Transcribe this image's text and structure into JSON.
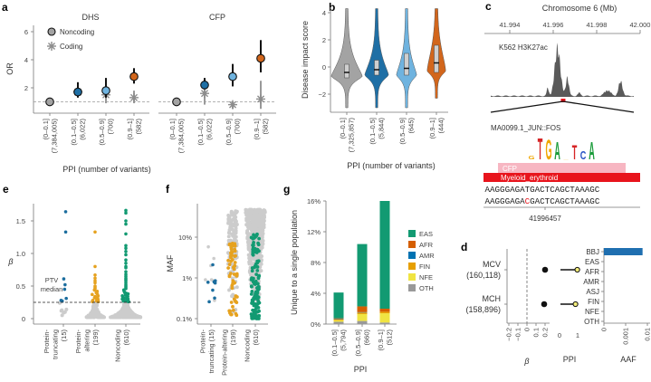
{
  "panel_labels": {
    "a": "a",
    "b": "b",
    "c": "c",
    "d": "d",
    "e": "e",
    "f": "f",
    "g": "g"
  },
  "chart_data": [
    {
      "panel": "a",
      "type": "scatter",
      "facets": [
        "DHS",
        "CFP"
      ],
      "ylabel": "OR",
      "xlabel": "PPI (number of variants)",
      "ylim": [
        0,
        6.5
      ],
      "yticks": [
        "2",
        "4",
        "6"
      ],
      "ytick_values": [
        2,
        4,
        6
      ],
      "reference_line": 1,
      "categories": [
        "(0–0.1]",
        "(0.1–0.5]",
        "(0.5–0.9]",
        "(0.9–1]"
      ],
      "counts": [
        "(7,384,005)",
        "(6,022)",
        "(700)",
        "(582)"
      ],
      "legend": [
        "Noncoding",
        "Coding"
      ],
      "category_colors": [
        "#a3a3a3",
        "#1f6fa5",
        "#6fb3df",
        "#d2661c"
      ],
      "series": [
        {
          "facet": "DHS",
          "name": "Noncoding",
          "values": [
            1.0,
            1.7,
            1.8,
            2.8
          ],
          "ci": [
            [
              0.95,
              1.05
            ],
            [
              1.3,
              2.4
            ],
            [
              1.3,
              2.7
            ],
            [
              2.3,
              3.4
            ]
          ]
        },
        {
          "facet": "DHS",
          "name": "Coding",
          "values": [
            null,
            1.7,
            1.5,
            1.3
          ],
          "ci": [
            null,
            [
              1.4,
              2.2
            ],
            [
              0.9,
              2.7
            ],
            [
              0.9,
              1.8
            ]
          ]
        },
        {
          "facet": "CFP",
          "name": "Noncoding",
          "values": [
            1.0,
            2.2,
            2.8,
            4.1
          ],
          "ci": [
            [
              0.95,
              1.05
            ],
            [
              1.9,
              2.7
            ],
            [
              2.1,
              3.7
            ],
            [
              3.1,
              5.4
            ]
          ]
        },
        {
          "facet": "CFP",
          "name": "Coding",
          "values": [
            null,
            1.6,
            0.8,
            1.2
          ],
          "ci": [
            null,
            [
              0.8,
              2.7
            ],
            [
              0.5,
              1.0
            ],
            [
              0.5,
              2.5
            ]
          ]
        }
      ]
    },
    {
      "panel": "b",
      "type": "violin",
      "ylabel": "Disease impact score",
      "xlabel": "PPI (number of variants)",
      "ylim": [
        -4,
        4.3
      ],
      "yticks": [
        "4",
        "2",
        "0",
        "−2"
      ],
      "ytick_values": [
        4,
        2,
        0,
        -2
      ],
      "categories": [
        "(0–0.1]",
        "(0.1–0.5]",
        "(0.5–0.9]",
        "(0.9–1]"
      ],
      "counts": [
        "(7,325,857)",
        "(5,844)",
        "(645)",
        "(444)"
      ],
      "colors": [
        "#a3a3a3",
        "#1f6fa5",
        "#6fb3df",
        "#d2661c"
      ],
      "median": [
        -0.4,
        -0.2,
        -0.1,
        0.3
      ],
      "q1": [
        -0.8,
        -0.6,
        -0.6,
        -0.4
      ],
      "q3": [
        0.2,
        0.5,
        1.0,
        1.6
      ],
      "min": [
        -3.0,
        -3.0,
        -3.0,
        -2.3
      ],
      "max": [
        4.3,
        4.3,
        4.3,
        4.3
      ],
      "mode": [
        -0.7,
        -0.6,
        -0.6,
        -0.3
      ]
    },
    {
      "panel": "c",
      "type": "genome-track",
      "title": "Chromosome 6 (Mb)",
      "xticks": [
        "41.994",
        "41.996",
        "41.998",
        "42.000"
      ],
      "xtick_values": [
        41.994,
        41.996,
        41.998,
        42.0
      ],
      "track_label": "K562 H3K27ac",
      "peaks": [
        {
          "pos": 41.9962,
          "height": 1.0,
          "width": 0.00018
        },
        {
          "pos": 41.99665,
          "height": 0.38,
          "width": 0.0001
        },
        {
          "pos": 41.99575,
          "height": 0.16,
          "width": 7e-05
        },
        {
          "pos": 41.9972,
          "height": 0.06,
          "width": 0.0001
        },
        {
          "pos": 41.9985,
          "height": 0.12,
          "width": 0.0002
        },
        {
          "pos": 41.9991,
          "height": 0.3,
          "width": 0.00013
        }
      ],
      "variant_position_mb": 41.996457,
      "motif_label": "MA0099.1_JUN::FOS",
      "motif_letters": [
        {
          "l": "G",
          "h": 0.15
        },
        {
          "l": "T",
          "h": 0.9
        },
        {
          "l": "G",
          "h": 0.85
        },
        {
          "l": "A",
          "h": 0.75
        },
        {
          "l": "_",
          "h": 0.1
        },
        {
          "l": "T",
          "h": 0.6
        },
        {
          "l": "C",
          "h": 0.35
        },
        {
          "l": "A",
          "h": 0.75
        }
      ],
      "annotation_bars": [
        "CFP",
        "Myeloid_erythroid"
      ],
      "ref_sequence": "CAAGGGAGATGACTCAGCTAAAGC",
      "alt_sequence": "CAAGGGAGACGACTCAGCTAAAGC",
      "alt_index": 9,
      "position_label": "41996457",
      "colors": {
        "cfp": "#f7b6c2",
        "myeloid": "#e8141c",
        "variant": "#e8141c",
        "track": "#5a5a5a"
      }
    },
    {
      "panel": "d",
      "type": "forest",
      "rows": [
        {
          "trait": "MCV",
          "n": "(160,118)",
          "beta": 0.2,
          "ppi": 0.98
        },
        {
          "trait": "MCH",
          "n": "(158,896)",
          "beta": 0.19,
          "ppi": 0.88
        }
      ],
      "beta_label": "β",
      "beta_ticks": [
        "−0.2",
        "−0.1",
        "0",
        "0.1",
        "0.2"
      ],
      "beta_tick_values": [
        -0.2,
        -0.1,
        0,
        0.1,
        0.2
      ],
      "ppi_label": "PPI",
      "ppi_ticks": [
        "0",
        "1"
      ],
      "aaf_label": "AAF",
      "aaf_ticks": [
        "0",
        "0.001",
        "0.01"
      ],
      "populations": [
        "BBJ",
        "EAS",
        "AFR",
        "AMR",
        "ASJ",
        "FIN",
        "NFE",
        "OTH"
      ],
      "aaf_values": [
        0.006,
        0,
        0,
        0,
        0,
        0,
        0,
        0
      ],
      "colors": {
        "bar": "#1f6fb0",
        "ppi_point": "#f2ec7a"
      }
    },
    {
      "panel": "e",
      "type": "beeswarm",
      "ylabel": "β",
      "yticks": [
        "0",
        "0.5",
        "1.0",
        "1.5"
      ],
      "ytick_values": [
        0,
        0.5,
        1.0,
        1.5
      ],
      "median_line": 0.25,
      "median_label": [
        "PTV",
        "median"
      ],
      "categories": [
        {
          "label": [
            "Protein-",
            "truncating",
            "(15)"
          ],
          "n": 15,
          "color": "#1b6d9e",
          "highlighted": [
            1.64,
            1.33,
            0.61,
            0.52,
            0.45,
            0.31,
            0.28,
            0.27
          ],
          "other": [
            0.24,
            0.14,
            0.13,
            0.12,
            0.1,
            0.09,
            0.05
          ]
        },
        {
          "label": [
            "Protein-",
            "altering",
            "(199)"
          ],
          "n": 199,
          "color": "#e6a21f",
          "highlighted": [
            1.33,
            0.8,
            0.67,
            0.62,
            0.58,
            0.55,
            0.5,
            0.48,
            0.46,
            0.44,
            0.42,
            0.4,
            0.38,
            0.37,
            0.35,
            0.34,
            0.33,
            0.32,
            0.31,
            0.3,
            0.3,
            0.29,
            0.28,
            0.28,
            0.27,
            0.27,
            0.26,
            0.26
          ],
          "other_range": [
            0.02,
            0.25
          ]
        },
        {
          "label": [
            "Noncoding",
            "(610)"
          ],
          "n": 610,
          "color": "#129a72",
          "highlighted": [
            1.66,
            1.62,
            1.5,
            1.45,
            1.3,
            1.12,
            1.08,
            1.03,
            0.98,
            0.9,
            0.85,
            0.8,
            0.78,
            0.72,
            0.68,
            0.65,
            0.62,
            0.6,
            0.58,
            0.55,
            0.52,
            0.5,
            0.48,
            0.46,
            0.44,
            0.42,
            0.4,
            0.39,
            0.38,
            0.36,
            0.35,
            0.34,
            0.33,
            0.32,
            0.31,
            0.3,
            0.3,
            0.29,
            0.28,
            0.28,
            0.27,
            0.27,
            0.26,
            0.26
          ],
          "other_range": [
            0.02,
            0.25
          ]
        }
      ]
    },
    {
      "panel": "f",
      "type": "beeswarm",
      "ylabel": "MAF",
      "yscale": "log",
      "yticks": [
        "0.1%",
        "1%",
        "10%"
      ],
      "ytick_values": [
        0.001,
        0.01,
        0.1
      ],
      "categories": [
        {
          "label": [
            "Protein-",
            "truncating (15)"
          ],
          "n": 15,
          "color": "#1b6d9e",
          "highlighted": [
            0.021,
            0.0085,
            0.008,
            0.0078,
            0.0075,
            0.005,
            0.0032,
            0.0026
          ],
          "other": [
            0.058,
            0.03,
            0.02,
            0.009,
            0.0085,
            0.0028,
            0.009
          ]
        },
        {
          "label": [
            "Protein-altering",
            "(199)"
          ],
          "n": 199,
          "color": "#e6a21f",
          "highlighted_n": 60,
          "range": [
            0.0011,
            0.45
          ]
        },
        {
          "label": [
            "Noncoding",
            "(610)"
          ],
          "n": 610,
          "color": "#129a72",
          "highlighted_n": 130,
          "range": [
            0.001,
            0.48
          ]
        }
      ]
    },
    {
      "panel": "g",
      "type": "bar",
      "stacked": true,
      "ylabel": "Unique to a single population",
      "xlabel": "PPI",
      "ylim": [
        0,
        16
      ],
      "yticks": [
        "0%",
        "4%",
        "8%",
        "12%",
        "16%"
      ],
      "ytick_values": [
        0,
        4,
        8,
        12,
        16
      ],
      "categories": [
        "(0.1–0.5]",
        "(0.5–0.9]",
        "(0.9–1]"
      ],
      "counts": [
        "(5,794)",
        "(660)",
        "(512)"
      ],
      "legend": [
        "EAS",
        "AFR",
        "AMR",
        "FIN",
        "NFE",
        "OTH"
      ],
      "legend_position": "right",
      "series": [
        {
          "name": "OTH",
          "color": "#999999",
          "values": [
            0.3,
            0.4,
            0.2
          ]
        },
        {
          "name": "NFE",
          "color": "#f0e442",
          "values": [
            0.2,
            0.9,
            1.2
          ]
        },
        {
          "name": "FIN",
          "color": "#e69f00",
          "values": [
            0.1,
            0.2,
            0.2
          ]
        },
        {
          "name": "AMR",
          "color": "#0072b2",
          "values": [
            0.05,
            0.05,
            0.0
          ]
        },
        {
          "name": "AFR",
          "color": "#d55e00",
          "values": [
            0.1,
            0.75,
            0.4
          ]
        },
        {
          "name": "EAS",
          "color": "#129a72",
          "values": [
            3.35,
            8.1,
            14.0
          ]
        }
      ]
    }
  ]
}
